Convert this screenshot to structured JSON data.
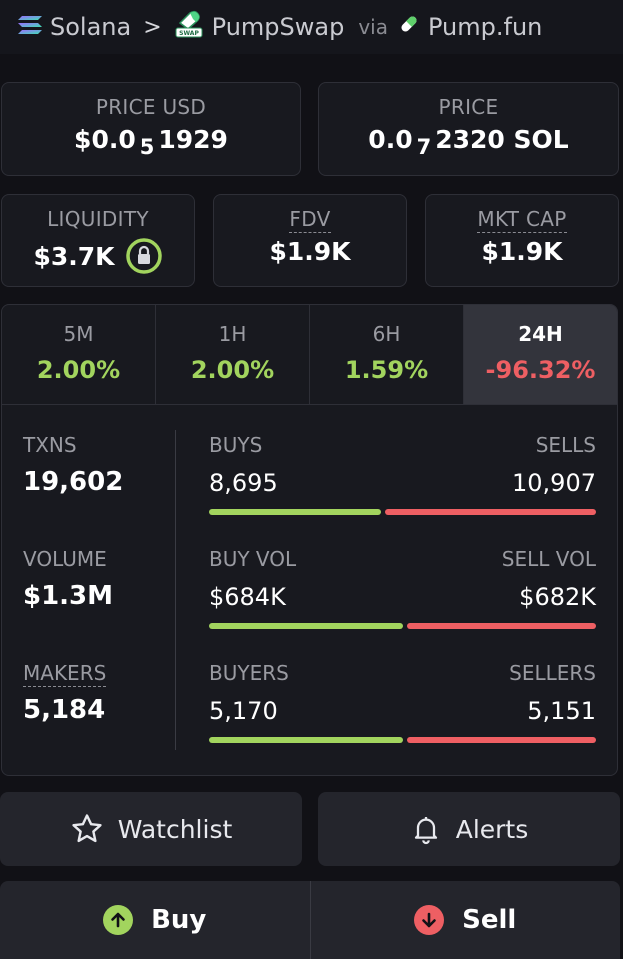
{
  "breadcrumb": {
    "chain": "Solana",
    "separator": ">",
    "dex": "PumpSwap",
    "via": "via",
    "launchpad": "Pump.fun"
  },
  "price_usd": {
    "label": "PRICE USD",
    "prefix": "$0.0",
    "zeros": "5",
    "digits": "1929"
  },
  "price_native": {
    "label": "PRICE",
    "prefix": "0.0",
    "zeros": "7",
    "digits": "2320 SOL"
  },
  "liquidity": {
    "label": "LIQUIDITY",
    "value": "$3.7K"
  },
  "fdv": {
    "label": "FDV",
    "value": "$1.9K"
  },
  "mkt_cap": {
    "label": "MKT CAP",
    "value": "$1.9K"
  },
  "timeframes": [
    {
      "label": "5M",
      "change": "2.00%",
      "trend": "up"
    },
    {
      "label": "1H",
      "change": "2.00%",
      "trend": "up"
    },
    {
      "label": "6H",
      "change": "1.59%",
      "trend": "up"
    },
    {
      "label": "24H",
      "change": "-96.32%",
      "trend": "down"
    }
  ],
  "left_stats": {
    "txns_label": "TXNS",
    "txns": "19,602",
    "volume_label": "VOLUME",
    "volume": "$1.3M",
    "makers_label": "MAKERS",
    "makers": "5,184"
  },
  "split_rows": [
    {
      "left_label": "BUYS",
      "right_label": "SELLS",
      "left_value": "8,695",
      "right_value": "10,907",
      "left_share": 0.444
    },
    {
      "left_label": "BUY VOL",
      "right_label": "SELL VOL",
      "left_value": "$684K",
      "right_value": "$682K",
      "left_share": 0.501
    },
    {
      "left_label": "BUYERS",
      "right_label": "SELLERS",
      "left_value": "5,170",
      "right_value": "5,151",
      "left_share": 0.501
    }
  ],
  "actions": {
    "watchlist": "Watchlist",
    "alerts": "Alerts",
    "buy": "Buy",
    "sell": "Sell"
  },
  "colors": {
    "green": "#a2d45e",
    "red": "#ee5f63",
    "background": "#111116"
  }
}
